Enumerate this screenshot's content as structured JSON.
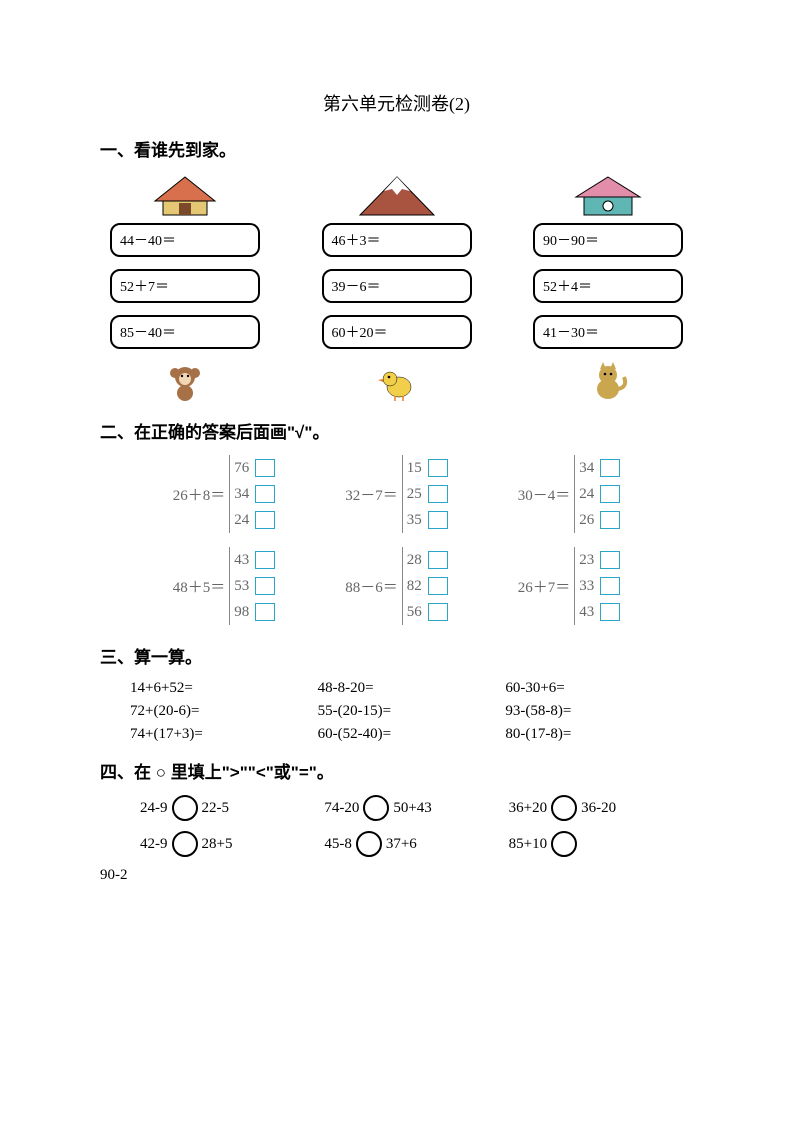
{
  "title": "第六单元检测卷(2)",
  "s1": {
    "heading": "一、看谁先到家。",
    "columns": [
      {
        "roof_type": "house-red",
        "animal_type": "monkey",
        "eqs": [
          "44－40＝",
          "52＋7＝",
          "85－40＝"
        ]
      },
      {
        "roof_type": "mountain",
        "animal_type": "chick",
        "eqs": [
          "46＋3＝",
          "39－6＝",
          "60＋20＝"
        ]
      },
      {
        "roof_type": "house-pink",
        "animal_type": "cat",
        "eqs": [
          "90－90＝",
          "52＋4＝",
          "41－30＝"
        ]
      }
    ]
  },
  "s2": {
    "heading": "二、在正确的答案后面画\"√\"。",
    "rows": [
      [
        {
          "expr": "26＋8＝",
          "opts": [
            "76",
            "34",
            "24"
          ]
        },
        {
          "expr": "32－7＝",
          "opts": [
            "15",
            "25",
            "35"
          ]
        },
        {
          "expr": "30－4＝",
          "opts": [
            "34",
            "24",
            "26"
          ]
        }
      ],
      [
        {
          "expr": "48＋5＝",
          "opts": [
            "43",
            "53",
            "98"
          ]
        },
        {
          "expr": "88－6＝",
          "opts": [
            "28",
            "82",
            "56"
          ]
        },
        {
          "expr": "26＋7＝",
          "opts": [
            "23",
            "33",
            "43"
          ]
        }
      ]
    ],
    "box_color": "#2aa5c9"
  },
  "s3": {
    "heading": "三、算一算。",
    "rows": [
      [
        "14+6+52=",
        "48-8-20=",
        "60-30+6="
      ],
      [
        "72+(20-6)=",
        "55-(20-15)=",
        "93-(58-8)="
      ],
      [
        "74+(17+3)=",
        "60-(52-40)=",
        "80-(17-8)="
      ]
    ]
  },
  "s4": {
    "heading": "四、在 ○ 里填上\">\"\"<\"或\"=\"。",
    "rows": [
      [
        {
          "left": "24-9",
          "right": "22-5"
        },
        {
          "left": "74-20",
          "right": "50+43"
        },
        {
          "left": "36+20",
          "right": "36-20"
        }
      ],
      [
        {
          "left": "42-9",
          "right": "28+5"
        },
        {
          "left": "45-8",
          "right": "37+6"
        },
        {
          "left": "85+10",
          "right": ""
        }
      ]
    ],
    "footer_expr": "90-2"
  },
  "colors": {
    "text": "#000000",
    "gray_text": "#777777",
    "house_red": "#d9704d",
    "house_yellow": "#e5c874",
    "mountain": "#a85440",
    "snow": "#ffffff",
    "house_pink": "#e28da9",
    "house_cyan": "#5fb6b3",
    "monkey": "#a77148",
    "chick": "#f2cf4a",
    "cat": "#caa64f"
  }
}
